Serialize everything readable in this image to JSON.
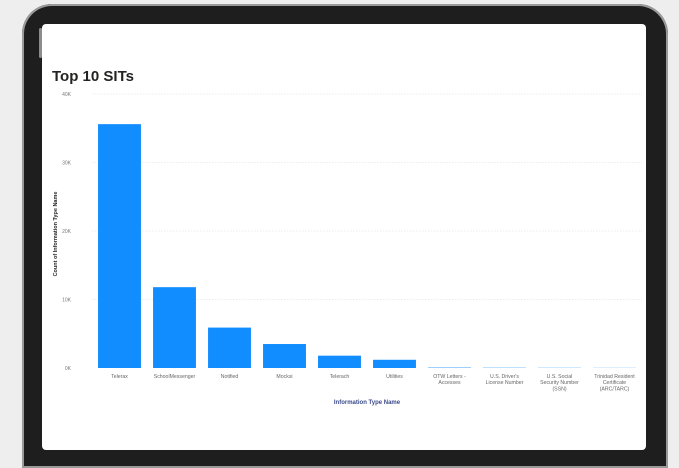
{
  "chart_data": {
    "type": "bar",
    "title": "Top 10 SITs",
    "xlabel": "Information Type Name",
    "ylabel": "Count of Information Type Name",
    "categories": [
      "Telerax",
      "SchoolMessenger",
      "Notified",
      "Mocksi",
      "Telerach",
      "Utilities",
      "OTW Letters - Accesses",
      "U.S. Driver's License Number",
      "U.S. Social Security Number (SSN)",
      "Trinidad Resident Certificate (ARC/TARC)"
    ],
    "values": [
      35600,
      11800,
      5900,
      3500,
      1800,
      1200,
      60,
      40,
      30,
      20
    ],
    "ylim": [
      0,
      40000
    ],
    "yticks": [
      0,
      10000,
      20000,
      30000,
      40000
    ],
    "ytick_labels": [
      "0K",
      "10K",
      "20K",
      "30K",
      "40K"
    ],
    "grid": true,
    "bar_color": "#118dff"
  }
}
